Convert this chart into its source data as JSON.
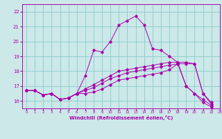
{
  "title": "",
  "xlabel": "Windchill (Refroidissement éolien,°C)",
  "bg_color": "#cce8e8",
  "line_color": "#aa00aa",
  "grid_color": "#88cccc",
  "xlim": [
    -0.5,
    23
  ],
  "ylim": [
    15.5,
    22.5
  ],
  "xticks": [
    0,
    1,
    2,
    3,
    4,
    5,
    6,
    7,
    8,
    9,
    10,
    11,
    12,
    13,
    14,
    15,
    16,
    17,
    18,
    19,
    20,
    21,
    22,
    23
  ],
  "yticks": [
    16,
    17,
    18,
    19,
    20,
    21,
    22
  ],
  "series": [
    [
      16.7,
      16.7,
      16.4,
      16.5,
      16.1,
      16.2,
      16.5,
      17.7,
      19.4,
      19.3,
      20.0,
      21.1,
      21.4,
      21.7,
      21.1,
      19.5,
      19.4,
      19.0,
      18.6,
      17.0,
      16.5,
      15.9,
      15.6
    ],
    [
      16.7,
      16.7,
      16.4,
      16.5,
      16.1,
      16.2,
      16.5,
      16.5,
      16.6,
      16.8,
      17.1,
      17.4,
      17.5,
      17.6,
      17.7,
      17.8,
      17.9,
      18.1,
      18.5,
      18.5,
      18.5,
      16.5,
      15.9
    ],
    [
      16.7,
      16.7,
      16.4,
      16.5,
      16.1,
      16.2,
      16.5,
      16.8,
      17.1,
      17.4,
      17.7,
      18.0,
      18.1,
      18.2,
      18.3,
      18.4,
      18.5,
      18.6,
      18.6,
      18.6,
      18.5,
      16.5,
      15.8
    ],
    [
      16.7,
      16.7,
      16.4,
      16.5,
      16.1,
      16.2,
      16.5,
      16.7,
      16.9,
      17.2,
      17.5,
      17.7,
      17.9,
      18.0,
      18.1,
      18.2,
      18.3,
      18.4,
      18.5,
      17.0,
      16.5,
      16.1,
      15.7
    ]
  ]
}
